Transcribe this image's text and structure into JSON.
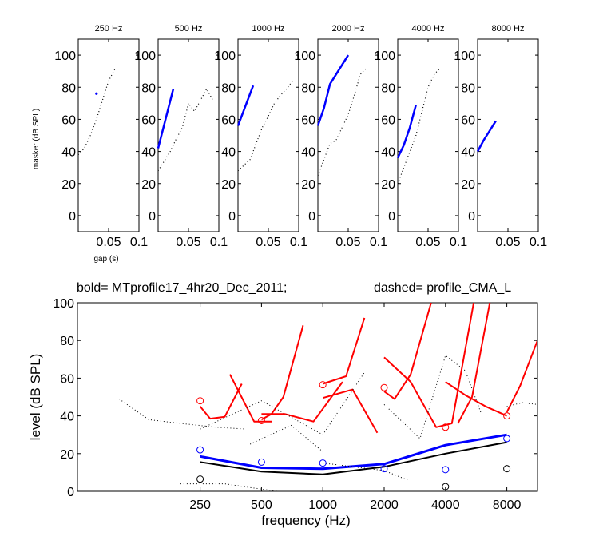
{
  "figure": {
    "small_panels_ylabel": "masker (dB SPL)",
    "small_panels_xlabel": "gap (s)",
    "title_left": "bold= MTprofile17_4hr20_Dec_2011;",
    "title_right": "dashed=  profile_CMA_L"
  },
  "chart_data": [
    {
      "type": "line",
      "title": "250 Hz",
      "xlim": [
        0,
        0.1
      ],
      "ylim": [
        -10,
        110
      ],
      "xticks": [
        "0.05",
        "0.1"
      ],
      "yticks": [
        "0",
        "20",
        "40",
        "60",
        "80",
        "100"
      ],
      "series": [
        {
          "style": "bold",
          "color": "#0000ff",
          "x": [
            0.03
          ],
          "y": [
            76
          ]
        },
        {
          "style": "dotted",
          "color": "#000000",
          "x": [
            0.0,
            0.01,
            0.02,
            0.03,
            0.04,
            0.05,
            0.06
          ],
          "y": [
            38,
            42,
            50,
            60,
            72,
            84,
            91
          ]
        }
      ]
    },
    {
      "type": "line",
      "title": "500 Hz",
      "xlim": [
        0,
        0.1
      ],
      "ylim": [
        -10,
        110
      ],
      "xticks": [
        "0.05",
        "0.1"
      ],
      "yticks": [
        "0",
        "20",
        "40",
        "60",
        "80",
        "100"
      ],
      "series": [
        {
          "style": "bold",
          "color": "#0000ff",
          "x": [
            0.0,
            0.025
          ],
          "y": [
            42,
            79
          ]
        },
        {
          "style": "dotted",
          "color": "#000000",
          "x": [
            0.0,
            0.02,
            0.03,
            0.04,
            0.05,
            0.06,
            0.07,
            0.08,
            0.09
          ],
          "y": [
            28,
            40,
            48,
            55,
            70,
            65,
            72,
            79,
            72
          ]
        }
      ]
    },
    {
      "type": "line",
      "title": "1000 Hz",
      "xlim": [
        0,
        0.1
      ],
      "ylim": [
        -10,
        110
      ],
      "xticks": [
        "0.05",
        "0.1"
      ],
      "yticks": [
        "0",
        "20",
        "40",
        "60",
        "80",
        "100"
      ],
      "series": [
        {
          "style": "bold",
          "color": "#0000ff",
          "x": [
            0.0,
            0.025
          ],
          "y": [
            56,
            81
          ]
        },
        {
          "style": "dotted",
          "color": "#000000",
          "x": [
            0.0,
            0.02,
            0.03,
            0.04,
            0.05,
            0.06,
            0.07,
            0.08,
            0.09
          ],
          "y": [
            28,
            35,
            45,
            55,
            62,
            70,
            75,
            79,
            84
          ]
        }
      ]
    },
    {
      "type": "line",
      "title": "2000 Hz",
      "xlim": [
        0,
        0.1
      ],
      "ylim": [
        -10,
        110
      ],
      "xticks": [
        "0.05",
        "0.1"
      ],
      "yticks": [
        "0",
        "20",
        "40",
        "60",
        "80",
        "100"
      ],
      "series": [
        {
          "style": "bold",
          "color": "#0000ff",
          "x": [
            0.0,
            0.01,
            0.02,
            0.03,
            0.04,
            0.05
          ],
          "y": [
            56,
            67,
            82,
            88,
            94,
            100
          ]
        },
        {
          "style": "dotted",
          "color": "#000000",
          "x": [
            0.0,
            0.01,
            0.02,
            0.03,
            0.04,
            0.05,
            0.06,
            0.07,
            0.08
          ],
          "y": [
            25,
            35,
            45,
            47,
            55,
            63,
            75,
            88,
            92
          ]
        }
      ]
    },
    {
      "type": "line",
      "title": "4000 Hz",
      "xlim": [
        0,
        0.1
      ],
      "ylim": [
        -10,
        110
      ],
      "xticks": [
        "0.05",
        "0.1"
      ],
      "yticks": [
        "0",
        "20",
        "40",
        "60",
        "80",
        "100"
      ],
      "series": [
        {
          "style": "bold",
          "color": "#0000ff",
          "x": [
            0.0,
            0.01,
            0.02,
            0.03
          ],
          "y": [
            36,
            44,
            55,
            69
          ]
        },
        {
          "style": "dotted",
          "color": "#000000",
          "x": [
            0.0,
            0.01,
            0.02,
            0.03,
            0.04,
            0.05,
            0.06,
            0.07
          ],
          "y": [
            20,
            30,
            40,
            50,
            65,
            80,
            88,
            92
          ]
        }
      ]
    },
    {
      "type": "line",
      "title": "8000 Hz",
      "xlim": [
        0,
        0.1
      ],
      "ylim": [
        -10,
        110
      ],
      "xticks": [
        "0.05",
        "0.1"
      ],
      "yticks": [
        "0",
        "20",
        "40",
        "60",
        "80",
        "100"
      ],
      "series": [
        {
          "style": "bold",
          "color": "#0000ff",
          "x": [
            0.0,
            0.01,
            0.02,
            0.03
          ],
          "y": [
            40,
            47,
            53,
            59
          ]
        }
      ]
    },
    {
      "type": "line",
      "xlabel": "frequency (Hz)",
      "ylabel": "level (dB SPL)",
      "x_scale": "log",
      "xlim": [
        62.5,
        11314
      ],
      "ylim": [
        0,
        100
      ],
      "xticks": [
        250,
        500,
        1000,
        2000,
        4000,
        8000
      ],
      "xticklabels": [
        "250",
        "500",
        "1000",
        "2000",
        "4000",
        "8000"
      ],
      "yticks": [
        "0",
        "20",
        "40",
        "60",
        "80",
        "100"
      ],
      "series": [
        {
          "style": "solid",
          "color": "#000000",
          "width": 2,
          "x": [
            250,
            500,
            1000,
            2000,
            4000,
            8000
          ],
          "y": [
            15.5,
            10.5,
            9,
            13,
            20,
            26
          ]
        },
        {
          "style": "solid",
          "color": "#0000ff",
          "width": 3,
          "x": [
            250,
            500,
            1000,
            2000,
            4000,
            8000
          ],
          "y": [
            18.5,
            12.5,
            12,
            14.5,
            24.5,
            30
          ]
        },
        {
          "style": "solid",
          "color": "#ff0000",
          "width": 2,
          "x": [
            250,
            280,
            330,
            400
          ],
          "y": [
            45,
            38.5,
            39.5,
            57
          ]
        },
        {
          "style": "solid",
          "color": "#ff0000",
          "width": 2,
          "x": [
            350,
            460,
            560
          ],
          "y": [
            62,
            37,
            37
          ]
        },
        {
          "style": "solid",
          "color": "#ff0000",
          "width": 2,
          "x": [
            500,
            560,
            640,
            800
          ],
          "y": [
            38,
            41,
            50,
            88
          ]
        },
        {
          "style": "solid",
          "color": "#ff0000",
          "width": 2,
          "x": [
            500,
            650,
            900,
            1250
          ],
          "y": [
            41,
            41,
            37,
            58
          ]
        },
        {
          "style": "solid",
          "color": "#ff0000",
          "width": 2,
          "x": [
            1000,
            1300,
            1600
          ],
          "y": [
            57,
            61,
            92
          ]
        },
        {
          "style": "solid",
          "color": "#ff0000",
          "width": 2,
          "x": [
            1000,
            1400,
            1850
          ],
          "y": [
            49.5,
            54,
            31
          ]
        },
        {
          "style": "solid",
          "color": "#ff0000",
          "width": 2,
          "x": [
            2000,
            2250,
            2700,
            3400
          ],
          "y": [
            53,
            49,
            62,
            100
          ]
        },
        {
          "style": "solid",
          "color": "#ff0000",
          "width": 2,
          "x": [
            2000,
            2700,
            3600,
            4300,
            5500
          ],
          "y": [
            71,
            58,
            34,
            36,
            100
          ]
        },
        {
          "style": "solid",
          "color": "#ff0000",
          "width": 2,
          "x": [
            4000,
            5000,
            6300,
            8000
          ],
          "y": [
            58,
            51,
            45,
            40
          ]
        },
        {
          "style": "solid",
          "color": "#ff0000",
          "width": 2,
          "x": [
            4600,
            5400,
            6600
          ],
          "y": [
            36,
            50,
            100
          ]
        },
        {
          "style": "solid",
          "color": "#ff0000",
          "width": 2,
          "x": [
            8000,
            9300,
            11314
          ],
          "y": [
            42,
            56,
            80
          ]
        },
        {
          "style": "dotted",
          "color": "#000000",
          "x": [
            100,
            140,
            200,
            300,
            420
          ],
          "y": [
            49,
            38,
            36,
            34,
            33
          ]
        },
        {
          "style": "dotted",
          "color": "#000000",
          "x": [
            250,
            500,
            1000,
            1600
          ],
          "y": [
            33,
            48,
            30,
            63
          ]
        },
        {
          "style": "dotted",
          "color": "#000000",
          "x": [
            440,
            700,
            1000
          ],
          "y": [
            25,
            35,
            21
          ]
        },
        {
          "style": "dotted",
          "color": "#000000",
          "x": [
            2000,
            3000,
            4000,
            5000,
            6000
          ],
          "y": [
            46,
            28,
            72,
            64,
            41
          ]
        },
        {
          "style": "dotted",
          "color": "#000000",
          "x": [
            8000,
            9500,
            11314
          ],
          "y": [
            45,
            47,
            46
          ]
        },
        {
          "style": "dotted",
          "color": "#000000",
          "x": [
            200,
            330,
            440,
            600,
            800
          ],
          "y": [
            4,
            4,
            2,
            0,
            0
          ]
        },
        {
          "style": "dotted",
          "color": "#000000",
          "x": [
            1000,
            2000,
            2600
          ],
          "y": [
            15,
            11,
            6
          ]
        },
        {
          "style": "dotted",
          "color": "#000000",
          "x": [
            3000,
            4000,
            5000
          ],
          "y": [
            0,
            0,
            0
          ]
        }
      ],
      "markers": [
        {
          "color": "#ff0000",
          "x": [
            250,
            500,
            1000,
            2000,
            4000,
            8000
          ],
          "y": [
            48,
            37.5,
            56.5,
            55,
            34,
            40
          ]
        },
        {
          "color": "#0000ff",
          "x": [
            250,
            500,
            1000,
            2000,
            4000,
            8000
          ],
          "y": [
            22,
            15.5,
            15,
            12,
            11.5,
            28
          ]
        },
        {
          "color": "#000000",
          "x": [
            250,
            4000,
            8000
          ],
          "y": [
            6.5,
            2.5,
            12
          ]
        }
      ]
    }
  ]
}
